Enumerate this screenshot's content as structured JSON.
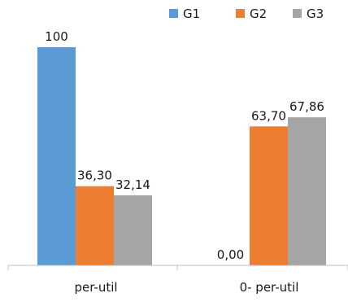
{
  "chart_data": {
    "type": "bar",
    "categories": [
      "per-util",
      "0- per-util"
    ],
    "series": [
      {
        "name": "G1",
        "values": [
          100,
          0.0
        ],
        "labels": [
          "100",
          "0,00"
        ],
        "color": "#5b9bd5"
      },
      {
        "name": "G2",
        "values": [
          36.3,
          63.7
        ],
        "labels": [
          "36,30",
          "63,70"
        ],
        "color": "#ed7d31"
      },
      {
        "name": "G3",
        "values": [
          32.14,
          67.86
        ],
        "labels": [
          "32,14",
          "67,86"
        ],
        "color": "#a5a5a5"
      }
    ],
    "ylim": [
      0,
      100
    ],
    "grid": false,
    "legend_position": "top-right"
  }
}
